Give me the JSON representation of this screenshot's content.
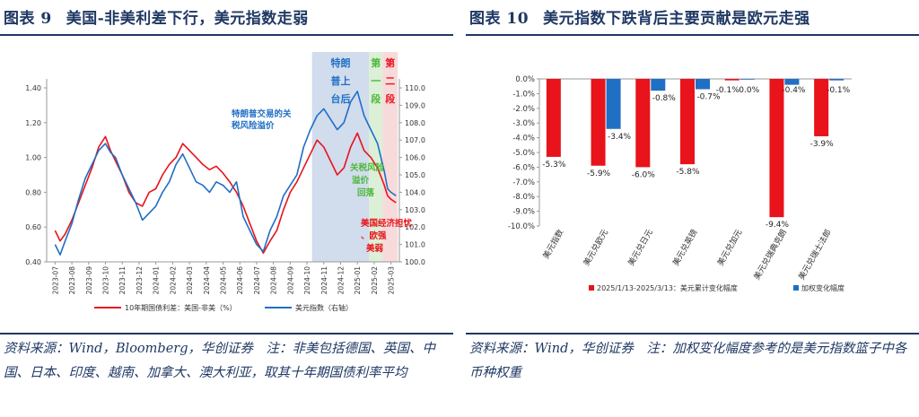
{
  "left": {
    "figure_num": "图表 9",
    "figure_title": "美国-非美利差下行，美元指数走弱",
    "source_note": "资料来源：Wind，Bloomberg，华创证券　注：非美包括德国、英国、中国、日本、印度、越南、加拿大、澳大利亚，取其十年期国债利率平均",
    "colors": {
      "spread": "#e8131b",
      "dxy": "#1f6fc5",
      "shade_blue": "#c9d6ea",
      "shade_green": "#d6ecd0",
      "shade_red": "#f6d5d5"
    }
  },
  "right": {
    "figure_num": "图表 10",
    "figure_title": "美元指数下跌背后主要贡献是欧元走强",
    "source_note": "资料来源：Wind，华创证券　注：加权变化幅度参考的是美元指数篮子中各币种权重",
    "colors": {
      "cum": "#e8131b",
      "weighted": "#1f6fc5"
    }
  },
  "chart_data": [
    {
      "type": "line",
      "x_ticks": [
        "2023-07",
        "2023-08",
        "2023-09",
        "2023-10",
        "2023-11",
        "2023-12",
        "2024-01",
        "2024-02",
        "2024-03",
        "2024-04",
        "2024-05",
        "2024-06",
        "2024-07",
        "2024-08",
        "2024-09",
        "2024-10",
        "2024-11",
        "2024-12",
        "2025-01",
        "2025-02",
        "2025-03"
      ],
      "ylim_left": [
        0.4,
        1.4
      ],
      "y_ticks_left": [
        "0.40",
        "0.60",
        "0.80",
        "1.00",
        "1.20",
        "1.40"
      ],
      "ylim_right": [
        100.0,
        110.0
      ],
      "y_ticks_right": [
        "100.0",
        "101.0",
        "102.0",
        "103.0",
        "104.0",
        "105.0",
        "106.0",
        "107.0",
        "108.0",
        "109.0",
        "110.0"
      ],
      "series": [
        {
          "name": "10年期国债利差：美国-非美（%）",
          "axis": "left",
          "points": [
            [
              0,
              0.58
            ],
            [
              0.3,
              0.52
            ],
            [
              0.6,
              0.56
            ],
            [
              1.0,
              0.64
            ],
            [
              1.4,
              0.74
            ],
            [
              1.8,
              0.84
            ],
            [
              2.2,
              0.94
            ],
            [
              2.6,
              1.06
            ],
            [
              3.0,
              1.12
            ],
            [
              3.3,
              1.04
            ],
            [
              3.6,
              0.98
            ],
            [
              4.0,
              0.9
            ],
            [
              4.4,
              0.8
            ],
            [
              4.8,
              0.74
            ],
            [
              5.2,
              0.72
            ],
            [
              5.6,
              0.8
            ],
            [
              6.0,
              0.82
            ],
            [
              6.4,
              0.9
            ],
            [
              6.8,
              0.96
            ],
            [
              7.2,
              1.0
            ],
            [
              7.6,
              1.08
            ],
            [
              8.0,
              1.04
            ],
            [
              8.4,
              1.0
            ],
            [
              8.8,
              0.96
            ],
            [
              9.2,
              0.93
            ],
            [
              9.6,
              0.95
            ],
            [
              10.0,
              0.91
            ],
            [
              10.4,
              0.86
            ],
            [
              10.8,
              0.8
            ],
            [
              11.2,
              0.72
            ],
            [
              11.6,
              0.62
            ],
            [
              12.0,
              0.52
            ],
            [
              12.4,
              0.45
            ],
            [
              12.8,
              0.52
            ],
            [
              13.2,
              0.58
            ],
            [
              13.6,
              0.7
            ],
            [
              14.0,
              0.8
            ],
            [
              14.4,
              0.86
            ],
            [
              14.8,
              0.94
            ],
            [
              15.2,
              1.02
            ],
            [
              15.6,
              1.1
            ],
            [
              16.0,
              1.06
            ],
            [
              16.4,
              0.98
            ],
            [
              16.8,
              0.9
            ],
            [
              17.2,
              0.94
            ],
            [
              17.6,
              1.06
            ],
            [
              18.0,
              1.14
            ],
            [
              18.4,
              1.04
            ],
            [
              18.8,
              1.0
            ],
            [
              19.2,
              0.94
            ],
            [
              19.6,
              0.84
            ],
            [
              19.8,
              0.78
            ],
            [
              20.0,
              0.76
            ],
            [
              20.3,
              0.74
            ]
          ]
        },
        {
          "name": "美元指数（右轴）",
          "axis": "right",
          "points": [
            [
              0,
              101.0
            ],
            [
              0.3,
              100.4
            ],
            [
              0.6,
              101.2
            ],
            [
              1.0,
              102.2
            ],
            [
              1.4,
              103.6
            ],
            [
              1.8,
              104.8
            ],
            [
              2.2,
              105.6
            ],
            [
              2.6,
              106.4
            ],
            [
              3.0,
              106.8
            ],
            [
              3.3,
              106.3
            ],
            [
              3.6,
              106.0
            ],
            [
              4.0,
              105.0
            ],
            [
              4.4,
              104.2
            ],
            [
              4.8,
              103.4
            ],
            [
              5.2,
              102.4
            ],
            [
              5.6,
              102.8
            ],
            [
              6.0,
              103.2
            ],
            [
              6.4,
              104.0
            ],
            [
              6.8,
              104.6
            ],
            [
              7.2,
              105.6
            ],
            [
              7.6,
              106.2
            ],
            [
              8.0,
              105.4
            ],
            [
              8.4,
              104.6
            ],
            [
              8.8,
              104.4
            ],
            [
              9.2,
              104.0
            ],
            [
              9.6,
              104.6
            ],
            [
              10.0,
              104.4
            ],
            [
              10.4,
              104.0
            ],
            [
              10.8,
              104.6
            ],
            [
              11.2,
              102.6
            ],
            [
              11.6,
              101.8
            ],
            [
              12.0,
              101.0
            ],
            [
              12.4,
              100.6
            ],
            [
              12.8,
              101.8
            ],
            [
              13.2,
              102.6
            ],
            [
              13.6,
              103.8
            ],
            [
              14.0,
              104.4
            ],
            [
              14.4,
              105.0
            ],
            [
              14.8,
              106.6
            ],
            [
              15.2,
              107.6
            ],
            [
              15.6,
              108.4
            ],
            [
              16.0,
              108.8
            ],
            [
              16.4,
              108.2
            ],
            [
              16.8,
              107.6
            ],
            [
              17.2,
              108.0
            ],
            [
              17.6,
              109.2
            ],
            [
              18.0,
              109.8
            ],
            [
              18.4,
              108.4
            ],
            [
              18.8,
              107.6
            ],
            [
              19.2,
              106.8
            ],
            [
              19.6,
              105.2
            ],
            [
              19.8,
              104.2
            ],
            [
              20.0,
              104.0
            ],
            [
              20.3,
              103.8
            ]
          ]
        }
      ],
      "shaded_regions": [
        {
          "label": "特朗普上台后",
          "from": 15.3,
          "to": 18.7
        },
        {
          "label": "第一段",
          "from": 18.7,
          "to": 19.5
        },
        {
          "label": "第二段",
          "from": 19.5,
          "to": 20.4
        }
      ],
      "annotations": [
        "特朗普交易的关税风险溢价",
        "关税风险溢价回落",
        "美国经济担忧、欧强美弱"
      ]
    },
    {
      "type": "bar",
      "categories": [
        "美元指数",
        "美元兑欧元",
        "美元兑日元",
        "美元兑英镑",
        "美元兑加元",
        "美元兑瑞典克朗",
        "美元兑瑞士法郎"
      ],
      "ylim": [
        -10.0,
        0.0
      ],
      "y_ticks": [
        "0.0%",
        "-1.0%",
        "-2.0%",
        "-3.0%",
        "-4.0%",
        "-5.0%",
        "-6.0%",
        "-7.0%",
        "-8.0%",
        "-9.0%",
        "-10.0%"
      ],
      "series": [
        {
          "name": "2025/1/13-2025/3/13：美元累计变化幅度",
          "values": [
            -5.3,
            -5.9,
            -6.0,
            -5.8,
            -0.1,
            -9.4,
            -3.9
          ],
          "labels": [
            "-5.3%",
            "-5.9%",
            "-6.0%",
            "-5.8%",
            "-0.1%",
            "-9.4%",
            "-3.9%"
          ]
        },
        {
          "name": "加权变化幅度",
          "values": [
            null,
            -3.4,
            -0.8,
            -0.7,
            0.0,
            -0.4,
            -0.1
          ],
          "labels": [
            "",
            "-3.4%",
            "-0.8%",
            "-0.7%",
            "0.0%",
            "-0.4%",
            "-0.1%"
          ]
        }
      ]
    }
  ]
}
